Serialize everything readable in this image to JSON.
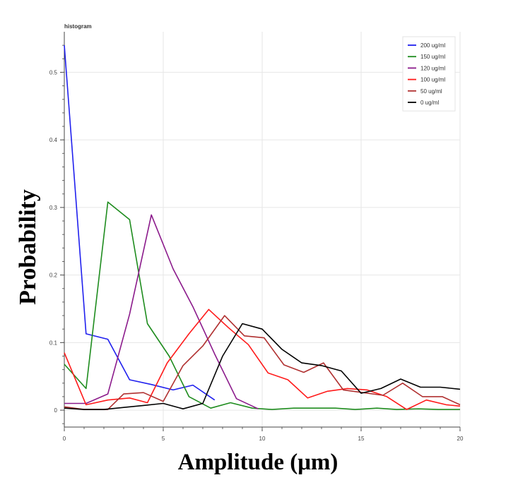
{
  "chart_data": {
    "type": "line",
    "title": "histogram",
    "xlabel": "Amplitude (μm)",
    "ylabel": "Probability",
    "xlim": [
      0,
      20
    ],
    "ylim": [
      -0.025,
      0.56
    ],
    "x_ticks": [
      "0",
      "5",
      "10",
      "15",
      "20"
    ],
    "y_ticks": [
      "0",
      "0.1",
      "0.2",
      "0.3",
      "0.4",
      "0.5"
    ],
    "grid": true,
    "legend_position": "top-right",
    "series": [
      {
        "name": "200 ug/ml",
        "color": "#2020ee",
        "x": [
          0,
          1.1,
          2.2,
          3.3,
          4.4,
          5.5,
          6.5,
          7.6
        ],
        "y": [
          0.54,
          0.113,
          0.105,
          0.045,
          0.038,
          0.03,
          0.037,
          0.015
        ]
      },
      {
        "name": "150 ug/ml",
        "color": "#1e8c1e",
        "x": [
          0,
          1.1,
          2.2,
          3.3,
          4.2,
          5.3,
          6.3,
          7.4,
          8.4,
          9.5,
          10.5,
          11.6,
          12.6,
          13.7,
          14.7,
          15.8,
          16.8,
          17.9,
          18.9,
          20
        ],
        "y": [
          0.068,
          0.032,
          0.308,
          0.282,
          0.128,
          0.08,
          0.02,
          0.003,
          0.011,
          0.003,
          0.001,
          0.003,
          0.003,
          0.003,
          0.001,
          0.003,
          0.001,
          0.002,
          0.001,
          0.001
        ]
      },
      {
        "name": "120 ug/ml",
        "color": "#8b1a8b",
        "x": [
          0,
          1.1,
          2.2,
          3.3,
          4.4,
          5.5,
          6.5,
          7.6,
          8.7,
          9.8
        ],
        "y": [
          0.01,
          0.01,
          0.024,
          0.142,
          0.289,
          0.209,
          0.153,
          0.083,
          0.017,
          0.002
        ]
      },
      {
        "name": "100 ug/ml",
        "color": "#ff1a1a",
        "x": [
          0,
          1.1,
          2.2,
          3.3,
          4.2,
          5.2,
          6.3,
          7.3,
          8.3,
          9.3,
          10.3,
          11.3,
          12.3,
          13.3,
          14.3,
          15.3,
          16.3,
          17.3,
          18.3,
          19.3,
          20
        ],
        "y": [
          0.085,
          0.008,
          0.015,
          0.018,
          0.011,
          0.07,
          0.113,
          0.149,
          0.122,
          0.097,
          0.055,
          0.045,
          0.018,
          0.028,
          0.032,
          0.03,
          0.02,
          0.001,
          0.015,
          0.008,
          0.006
        ]
      },
      {
        "name": "50 ug/ml",
        "color": "#b03030",
        "x": [
          0,
          1,
          2.2,
          3,
          4,
          5,
          6,
          7,
          8.1,
          9.1,
          10.1,
          11.1,
          12.1,
          13.1,
          14.1,
          15.1,
          16.1,
          17.1,
          18.1,
          19.1,
          20
        ],
        "y": [
          0.005,
          0.001,
          0.001,
          0.024,
          0.026,
          0.013,
          0.066,
          0.095,
          0.14,
          0.11,
          0.107,
          0.067,
          0.056,
          0.07,
          0.03,
          0.026,
          0.022,
          0.04,
          0.02,
          0.02,
          0.008
        ]
      },
      {
        "name": "0 ug/ml",
        "color": "#000000",
        "x": [
          0,
          1,
          2,
          3,
          4,
          5,
          6,
          7,
          8,
          9,
          10,
          11,
          12,
          13,
          14,
          15,
          16,
          17,
          18,
          19,
          20
        ],
        "y": [
          0.003,
          0.001,
          0.001,
          0.004,
          0.007,
          0.01,
          0.002,
          0.01,
          0.08,
          0.128,
          0.12,
          0.09,
          0.07,
          0.066,
          0.058,
          0.025,
          0.032,
          0.046,
          0.034,
          0.034,
          0.031
        ]
      }
    ]
  }
}
